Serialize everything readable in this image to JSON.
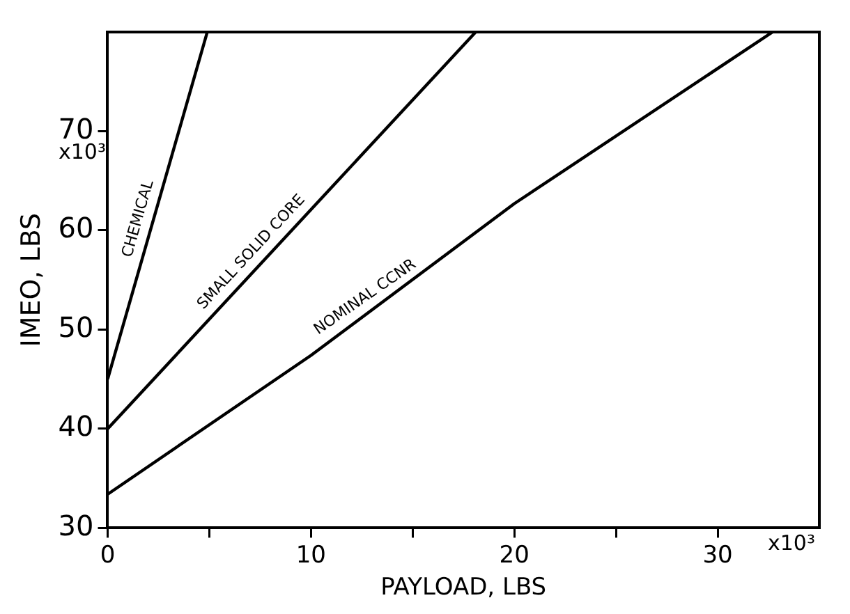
{
  "chart_data": {
    "type": "line",
    "xlabel": "PAYLOAD, LBS",
    "ylabel": "IMEO, LBS",
    "annotations": [
      "x10³",
      "x10³"
    ],
    "xlim": [
      0,
      35
    ],
    "ylim": [
      30,
      80
    ],
    "xticks": [
      0,
      {
        "value": 5,
        "label": null
      },
      10,
      {
        "value": 15,
        "label": null
      },
      20,
      {
        "value": 25,
        "label": null
      },
      30
    ],
    "yticks": [
      30,
      40,
      50,
      60,
      70
    ],
    "grid": false,
    "legend": false,
    "marker": "none",
    "line_style": "solid",
    "series": [
      {
        "name": "CHEMICAL",
        "color": "#000000",
        "x": [
          0,
          4.9
        ],
        "values": [
          45,
          80
        ]
      },
      {
        "name": "SMALL SOLID CORE",
        "color": "#000000",
        "x": [
          0,
          18.1
        ],
        "values": [
          40,
          80
        ]
      },
      {
        "name": "NOMINAL CCNR",
        "color": "#000000",
        "x": [
          0,
          10,
          20,
          32.7
        ],
        "values": [
          33.4,
          47.4,
          62.7,
          80
        ]
      }
    ]
  }
}
